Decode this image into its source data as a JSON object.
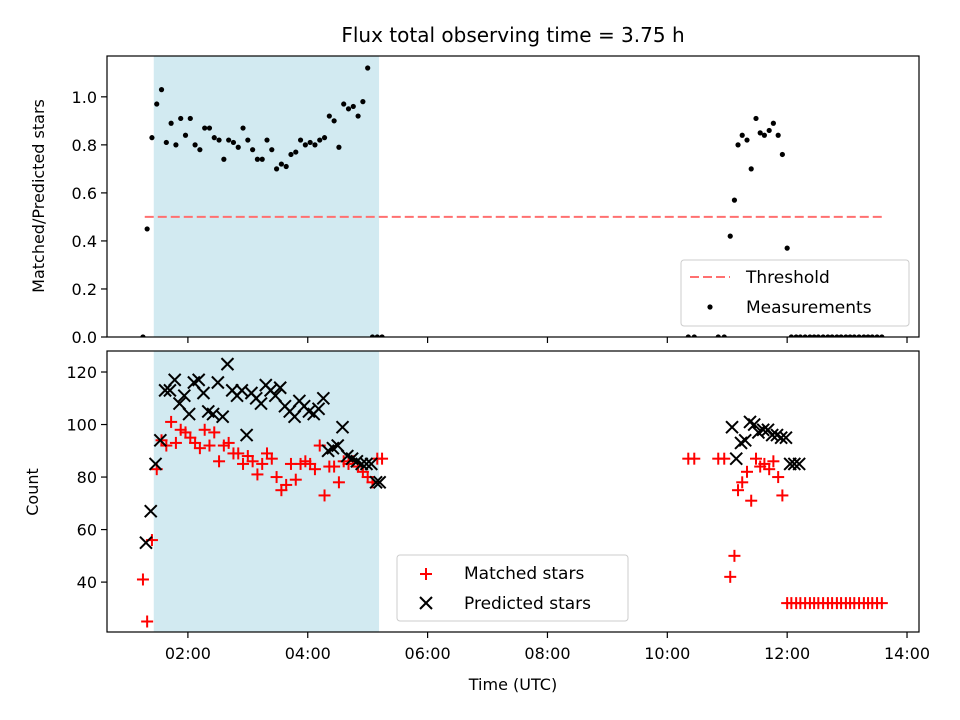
{
  "title": "Flux total observing time = 3.75 h",
  "chart_data": [
    {
      "type": "scatter",
      "panel": "top",
      "ylabel": "Matched/Predicted stars",
      "xlim": [
        0.65,
        14.2
      ],
      "ylim": [
        0,
        1.17
      ],
      "yticks": [
        0.0,
        0.2,
        0.4,
        0.6,
        0.8,
        1.0
      ],
      "ytick_labels": [
        "0.0",
        "0.2",
        "0.4",
        "0.6",
        "0.8",
        "1.0"
      ],
      "shaded_region": {
        "x_start": 1.43,
        "x_end": 5.19,
        "color": "#add8e6"
      },
      "threshold": {
        "name": "Threshold",
        "y": 0.5,
        "x_start": 1.28,
        "x_end": 13.6,
        "color": "#ff7070"
      },
      "legend": {
        "position": "lower-right",
        "entries": [
          "Threshold",
          "Measurements"
        ]
      },
      "series": [
        {
          "name": "Measurements",
          "marker": "dot",
          "color": "#000000",
          "x": [
            1.25,
            1.32,
            1.4,
            1.48,
            1.56,
            1.64,
            1.72,
            1.8,
            1.88,
            1.96,
            2.04,
            2.12,
            2.2,
            2.28,
            2.36,
            2.44,
            2.52,
            2.6,
            2.68,
            2.76,
            2.84,
            2.92,
            3.0,
            3.08,
            3.16,
            3.24,
            3.32,
            3.4,
            3.48,
            3.56,
            3.64,
            3.72,
            3.8,
            3.88,
            3.96,
            4.04,
            4.12,
            4.2,
            4.28,
            4.36,
            4.44,
            4.52,
            4.6,
            4.68,
            4.76,
            4.84,
            4.92,
            5.0,
            5.08,
            5.16,
            5.24,
            10.35,
            10.45,
            10.85,
            10.95,
            11.05,
            11.12,
            11.18,
            11.25,
            11.33,
            11.4,
            11.48,
            11.55,
            11.62,
            11.7,
            11.77,
            11.85,
            11.92,
            12.0,
            12.07,
            12.15,
            12.22,
            12.3,
            12.38,
            12.45,
            12.52,
            12.6,
            12.68,
            12.75,
            12.83,
            12.9,
            12.98,
            13.05,
            13.12,
            13.2,
            13.28,
            13.35,
            13.42,
            13.5,
            13.58
          ],
          "y": [
            0.0,
            0.45,
            0.83,
            0.97,
            1.03,
            0.81,
            0.89,
            0.8,
            0.91,
            0.84,
            0.91,
            0.8,
            0.78,
            0.87,
            0.87,
            0.83,
            0.82,
            0.74,
            0.82,
            0.81,
            0.79,
            0.87,
            0.82,
            0.78,
            0.74,
            0.74,
            0.82,
            0.78,
            0.7,
            0.72,
            0.71,
            0.76,
            0.77,
            0.82,
            0.8,
            0.81,
            0.8,
            0.82,
            0.83,
            0.92,
            0.9,
            0.79,
            0.97,
            0.95,
            0.96,
            0.92,
            0.98,
            1.12,
            0,
            0,
            0,
            0.0,
            0.0,
            0.0,
            0.0,
            0.42,
            0.57,
            0.8,
            0.84,
            0.82,
            0.7,
            0.91,
            0.85,
            0.84,
            0.86,
            0.89,
            0.84,
            0.76,
            0.37,
            0.0,
            0.0,
            0.0,
            0.0,
            0.0,
            0.0,
            0.0,
            0.0,
            0.0,
            0.0,
            0.0,
            0.0,
            0.0,
            0.0,
            0.0,
            0.0,
            0.0,
            0.0,
            0.0,
            0.0,
            0.0
          ]
        }
      ]
    },
    {
      "type": "scatter",
      "panel": "bottom",
      "xlabel": "Time (UTC)",
      "ylabel": "Count",
      "xlim": [
        0.65,
        14.2
      ],
      "ylim": [
        21,
        128
      ],
      "xticks": [
        2,
        4,
        6,
        8,
        10,
        12,
        14
      ],
      "xtick_labels": [
        "02:00",
        "04:00",
        "06:00",
        "08:00",
        "10:00",
        "12:00",
        "14:00"
      ],
      "yticks": [
        40,
        60,
        80,
        100,
        120
      ],
      "ytick_labels": [
        "40",
        "60",
        "80",
        "100",
        "120"
      ],
      "shaded_region": {
        "x_start": 1.43,
        "x_end": 5.19,
        "color": "#add8e6"
      },
      "legend": {
        "position": "bottom-center",
        "entries": [
          "Matched stars",
          "Predicted stars"
        ]
      },
      "series": [
        {
          "name": "Matched stars",
          "marker": "plus",
          "color": "#ff0000",
          "x": [
            1.25,
            1.32,
            1.4,
            1.48,
            1.56,
            1.64,
            1.72,
            1.8,
            1.88,
            1.96,
            2.04,
            2.12,
            2.2,
            2.28,
            2.36,
            2.44,
            2.52,
            2.6,
            2.68,
            2.76,
            2.84,
            2.92,
            3.0,
            3.08,
            3.16,
            3.24,
            3.32,
            3.4,
            3.48,
            3.56,
            3.64,
            3.72,
            3.8,
            3.88,
            3.96,
            4.04,
            4.12,
            4.2,
            4.28,
            4.36,
            4.44,
            4.52,
            4.6,
            4.68,
            4.76,
            4.84,
            4.92,
            5.0,
            5.08,
            5.16,
            5.24,
            10.35,
            10.45,
            10.85,
            10.95,
            11.05,
            11.12,
            11.18,
            11.25,
            11.33,
            11.4,
            11.48,
            11.55,
            11.62,
            11.7,
            11.77,
            11.85,
            11.92,
            12.0,
            12.07,
            12.15,
            12.22,
            12.3,
            12.38,
            12.45,
            12.52,
            12.6,
            12.68,
            12.75,
            12.83,
            12.9,
            12.98,
            13.05,
            13.12,
            13.2,
            13.28,
            13.35,
            13.42,
            13.5,
            13.58
          ],
          "y": [
            41,
            25,
            56,
            83,
            94,
            92,
            101,
            93,
            98,
            97,
            95,
            93,
            91,
            98,
            92,
            97,
            86,
            92,
            93,
            89,
            89,
            85,
            88,
            86,
            81,
            85,
            89,
            87,
            80,
            75,
            77,
            85,
            79,
            85,
            86,
            85,
            83,
            92,
            73,
            84,
            84,
            78,
            86,
            85,
            86,
            84,
            82,
            80,
            78,
            87,
            87,
            87,
            87,
            87,
            87,
            42,
            50,
            75,
            78,
            82,
            71,
            87,
            84,
            85,
            83,
            86,
            80,
            73,
            32,
            32,
            32,
            32,
            32,
            32,
            32,
            32,
            32,
            32,
            32,
            32,
            32,
            32,
            32,
            32,
            32,
            32,
            32,
            32,
            32,
            32
          ]
        },
        {
          "name": "Predicted stars",
          "marker": "x",
          "color": "#000000",
          "x": [
            1.3,
            1.38,
            1.46,
            1.54,
            1.62,
            1.7,
            1.78,
            1.86,
            1.94,
            2.02,
            2.1,
            2.18,
            2.26,
            2.34,
            2.42,
            2.5,
            2.58,
            2.66,
            2.74,
            2.82,
            2.9,
            2.98,
            3.06,
            3.14,
            3.22,
            3.3,
            3.38,
            3.46,
            3.54,
            3.62,
            3.7,
            3.78,
            3.86,
            3.94,
            4.02,
            4.1,
            4.18,
            4.26,
            4.34,
            4.42,
            4.5,
            4.58,
            4.66,
            4.74,
            4.82,
            4.9,
            4.98,
            5.06,
            5.14,
            5.2,
            11.08,
            11.15,
            11.23,
            11.3,
            11.38,
            11.45,
            11.52,
            11.6,
            11.68,
            11.75,
            11.83,
            11.9,
            11.98,
            12.05,
            12.12,
            12.2
          ],
          "y": [
            55,
            67,
            85,
            94,
            113,
            113,
            117,
            108,
            111,
            104,
            116,
            117,
            112,
            105,
            104,
            116,
            103,
            123,
            113,
            111,
            113,
            96,
            112,
            110,
            108,
            115,
            113,
            111,
            114,
            107,
            105,
            103,
            109,
            107,
            105,
            104,
            106,
            110,
            90,
            91,
            92,
            99,
            88,
            87,
            86,
            85,
            85,
            85,
            78,
            78,
            99,
            87,
            93,
            94,
            101,
            100,
            97,
            98,
            98,
            96,
            96,
            95,
            95,
            85,
            85,
            85
          ]
        }
      ]
    }
  ]
}
